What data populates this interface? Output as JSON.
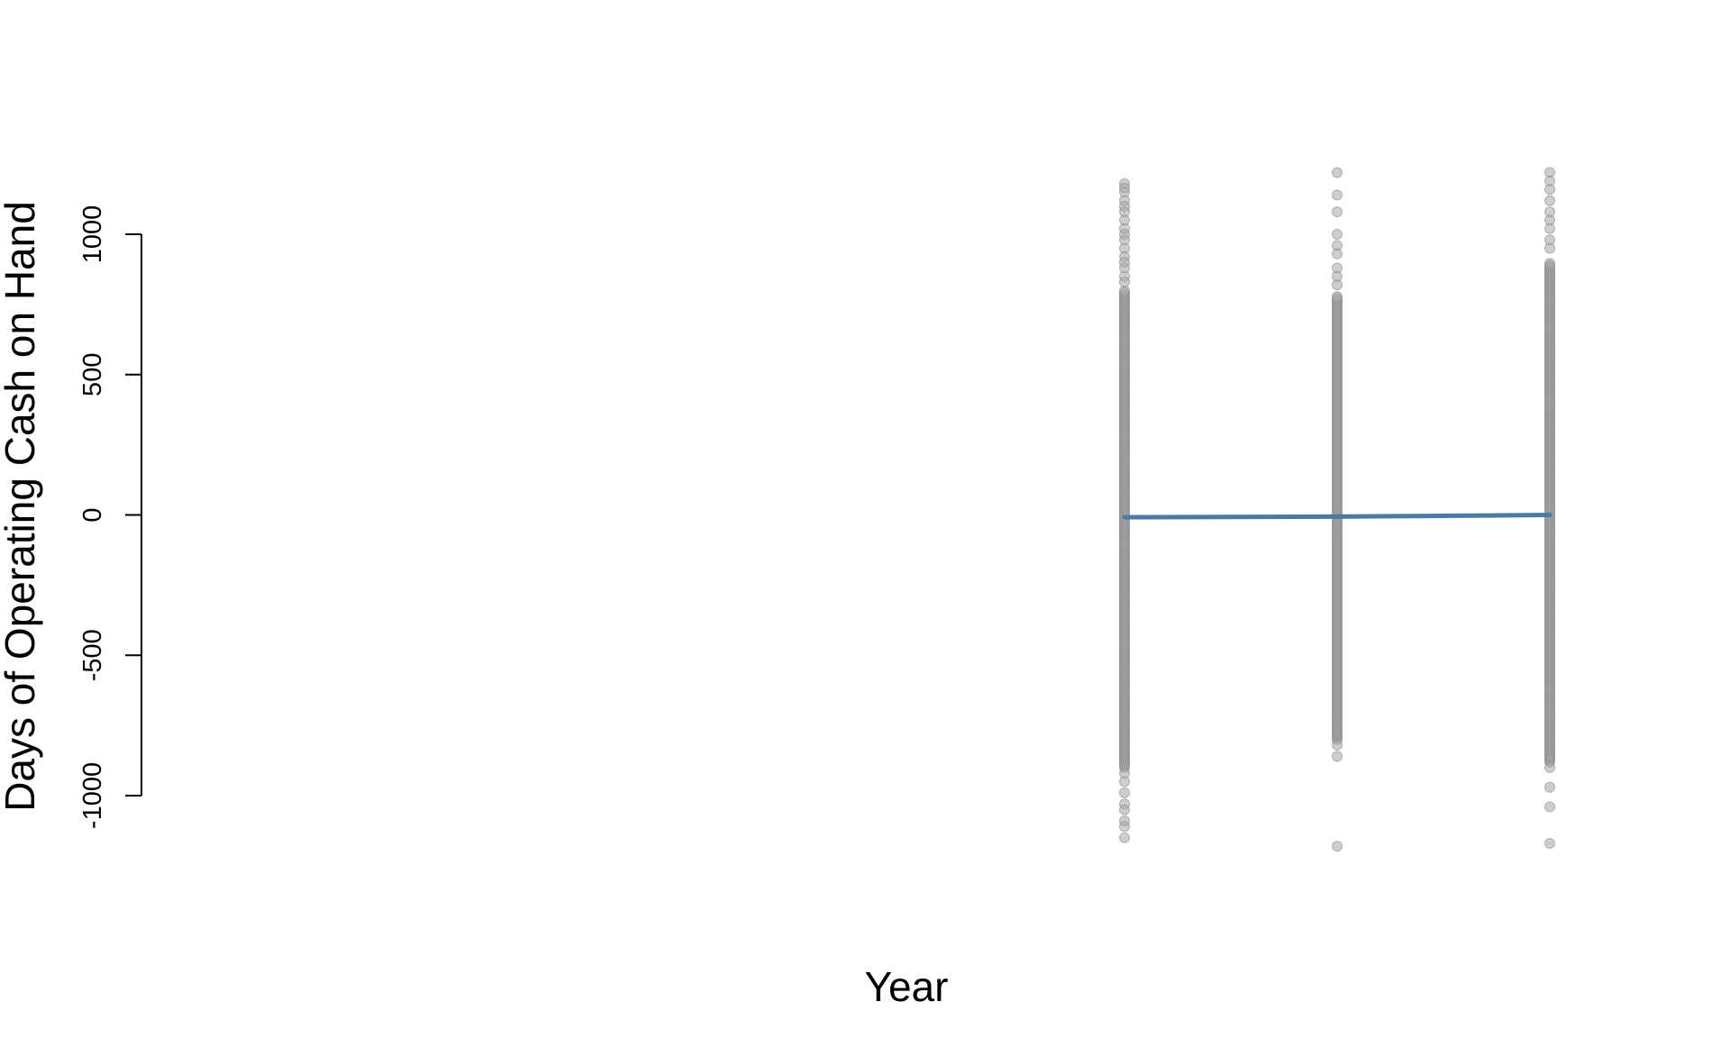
{
  "chart_data": {
    "type": "scatter",
    "title": "",
    "xlabel": "Year",
    "ylabel": "Days of Operating Cash on Hand",
    "ylim": [
      -1000,
      1000
    ],
    "y_ticks": [
      -1000,
      -500,
      0,
      500,
      1000
    ],
    "y_tick_labels": [
      "-1000",
      "-500",
      "0",
      "500",
      "1000"
    ],
    "x_axis_shown": false,
    "grid": false,
    "legend": "none",
    "point_color": "#a6a6a6",
    "line_color": "#4a7ba7",
    "groups": [
      {
        "x_index": 0,
        "dense_range": [
          -900,
          800
        ],
        "outliers": [
          1180,
          1165,
          1150,
          1120,
          1100,
          1080,
          1050,
          1020,
          1000,
          980,
          950,
          920,
          900,
          880,
          850,
          830,
          -920,
          -950,
          -990,
          -1030,
          -1050,
          -1090,
          -1110,
          -1150
        ]
      },
      {
        "x_index": 1,
        "dense_range": [
          -800,
          780
        ],
        "outliers": [
          1220,
          1140,
          1080,
          1000,
          960,
          930,
          880,
          850,
          820,
          -820,
          -860,
          -1180
        ]
      },
      {
        "x_index": 2,
        "dense_range": [
          -880,
          900
        ],
        "outliers": [
          1220,
          1190,
          1160,
          1120,
          1080,
          1050,
          1020,
          980,
          950,
          -900,
          -970,
          -1040,
          -1170
        ]
      }
    ],
    "trend_line": {
      "x_index": [
        0,
        1,
        1.35,
        1.7,
        2
      ],
      "y": [
        -8,
        -6,
        -4,
        -2,
        0
      ]
    }
  }
}
